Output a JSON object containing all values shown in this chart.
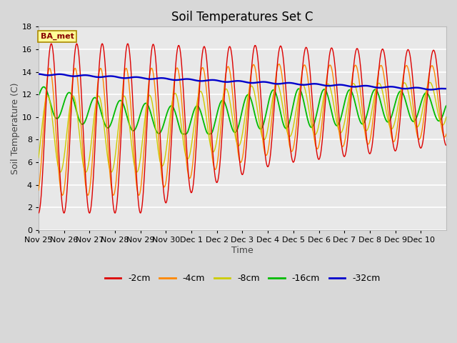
{
  "title": "Soil Temperatures Set C",
  "xlabel": "Time",
  "ylabel": "Soil Temperature (C)",
  "ylim": [
    0,
    18
  ],
  "yticks": [
    0,
    2,
    4,
    6,
    8,
    10,
    12,
    14,
    16,
    18
  ],
  "xtick_labels": [
    "Nov 25",
    "Nov 26",
    "Nov 27",
    "Nov 28",
    "Nov 29",
    "Nov 30",
    "Dec 1",
    "Dec 2",
    "Dec 3",
    "Dec 4",
    "Dec 5",
    "Dec 6",
    "Dec 7",
    "Dec 8",
    "Dec 9",
    "Dec 10"
  ],
  "colors": {
    "-2cm": "#dd0000",
    "-4cm": "#ff8800",
    "-8cm": "#cccc00",
    "-16cm": "#00bb00",
    "-32cm": "#0000cc"
  },
  "fig_bg": "#d8d8d8",
  "plot_bg": "#e8e8e8",
  "annotation_text": "BA_met",
  "annotation_bg": "#ffff99",
  "annotation_border": "#aa8800",
  "legend_labels": [
    "-2cm",
    "-4cm",
    "-8cm",
    "-16cm",
    "-32cm"
  ],
  "title_fontsize": 12,
  "axis_label_fontsize": 9,
  "tick_fontsize": 8
}
